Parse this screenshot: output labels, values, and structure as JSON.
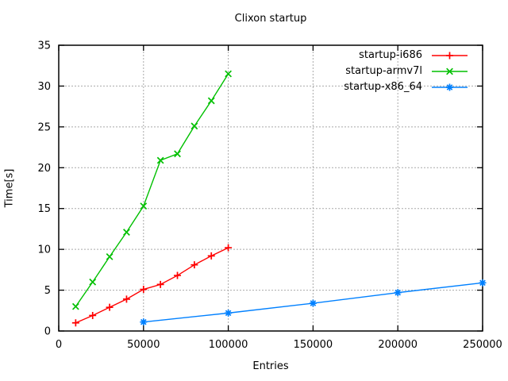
{
  "window": {
    "background": "#ffffff"
  },
  "chart_data": {
    "type": "line",
    "title": "Clixon startup",
    "xlabel": "Entries",
    "ylabel": "Time[s]",
    "xlim": [
      0,
      250000
    ],
    "ylim": [
      0,
      35
    ],
    "xticks": [
      0,
      50000,
      100000,
      150000,
      200000,
      250000
    ],
    "yticks": [
      0,
      5,
      10,
      15,
      20,
      25,
      30,
      35
    ],
    "grid": true,
    "legend_position": "top-right-inside",
    "series": [
      {
        "name": "startup-i686",
        "color": "#ff0000",
        "marker": "plus",
        "x": [
          10000,
          20000,
          30000,
          40000,
          50000,
          60000,
          70000,
          80000,
          90000,
          100000
        ],
        "y": [
          1.0,
          1.9,
          2.9,
          3.9,
          5.1,
          5.7,
          6.8,
          8.1,
          9.2,
          10.2
        ]
      },
      {
        "name": "startup-armv7l",
        "color": "#00c000",
        "marker": "cross",
        "x": [
          10000,
          20000,
          30000,
          40000,
          50000,
          60000,
          70000,
          80000,
          90000,
          100000
        ],
        "y": [
          3.0,
          6.0,
          9.1,
          12.1,
          15.3,
          20.9,
          21.7,
          25.1,
          28.2,
          31.5
        ]
      },
      {
        "name": "startup-x86_64",
        "color": "#0080ff",
        "marker": "asterisk",
        "x": [
          50000,
          100000,
          150000,
          200000,
          250000
        ],
        "y": [
          1.1,
          2.2,
          3.4,
          4.7,
          5.9
        ]
      }
    ]
  }
}
